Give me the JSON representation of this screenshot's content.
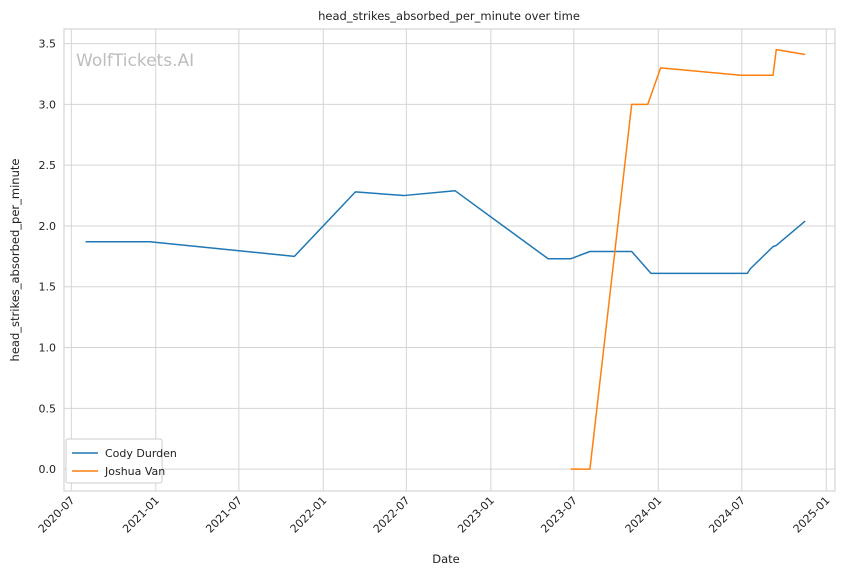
{
  "chart_data": {
    "type": "line",
    "title": "head_strikes_absorbed_per_minute over time",
    "xlabel": "Date",
    "ylabel": "head_strikes_absorbed_per_minute",
    "watermark": "WolfTickets.AI",
    "x_ticks": [
      "2020-07",
      "2021-01",
      "2021-07",
      "2022-01",
      "2022-07",
      "2023-01",
      "2023-07",
      "2024-01",
      "2024-07",
      "2025-01"
    ],
    "y_ticks": [
      "0.0",
      "0.5",
      "1.0",
      "1.5",
      "2.0",
      "2.5",
      "3.0",
      "3.5"
    ],
    "xlim": [
      "2020-06-15",
      "2025-01-20"
    ],
    "ylim": [
      -0.18,
      3.62
    ],
    "grid": true,
    "legend_position": "lower-left",
    "series": [
      {
        "name": "Cody Durden",
        "color": "#1f77b4",
        "points": [
          [
            "2020-08-01",
            1.87
          ],
          [
            "2020-12-19",
            1.87
          ],
          [
            "2021-10-30",
            1.75
          ],
          [
            "2022-03-12",
            2.28
          ],
          [
            "2022-06-25",
            2.25
          ],
          [
            "2022-10-15",
            2.29
          ],
          [
            "2023-05-06",
            1.73
          ],
          [
            "2023-06-24",
            1.73
          ],
          [
            "2023-08-05",
            1.79
          ],
          [
            "2023-11-04",
            1.79
          ],
          [
            "2023-12-16",
            1.61
          ],
          [
            "2024-07-13",
            1.61
          ],
          [
            "2024-07-20",
            1.65
          ],
          [
            "2024-09-07",
            1.83
          ],
          [
            "2024-09-14",
            1.84
          ],
          [
            "2024-11-16",
            2.04
          ]
        ]
      },
      {
        "name": "Joshua Van",
        "color": "#ff7f0e",
        "points": [
          [
            "2023-06-24",
            0.0
          ],
          [
            "2023-08-05",
            0.0
          ],
          [
            "2023-11-04",
            3.0
          ],
          [
            "2023-12-09",
            3.0
          ],
          [
            "2024-01-06",
            3.3
          ],
          [
            "2024-06-29",
            3.24
          ],
          [
            "2024-09-07",
            3.24
          ],
          [
            "2024-09-14",
            3.45
          ],
          [
            "2024-11-16",
            3.41
          ]
        ]
      }
    ]
  }
}
